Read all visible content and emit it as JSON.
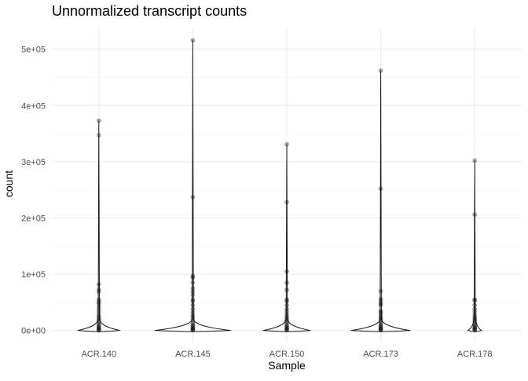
{
  "chart_data": {
    "type": "violin",
    "title": "Unnormalized transcript counts",
    "xlabel": "Sample",
    "ylabel": "count",
    "categories": [
      "ACR.140",
      "ACR.145",
      "ACR.150",
      "ACR.173",
      "ACR.178"
    ],
    "ylim": [
      -20000,
      540000
    ],
    "yticks": [
      0,
      100000,
      200000,
      300000,
      400000,
      500000
    ],
    "ytick_labels": [
      "0e+00",
      "1e+05",
      "2e+05",
      "3e+05",
      "4e+05",
      "5e+05"
    ],
    "grid": true,
    "legend": "none",
    "series": [
      {
        "category": "ACR.140",
        "max": 373000,
        "outliers": [
          373000,
          347000,
          82000,
          73000,
          69000,
          55000,
          51000,
          48000,
          43000,
          38000,
          33000,
          28000,
          24000,
          21000,
          18000,
          15000,
          12000,
          9500,
          7500,
          5500,
          4000,
          2500,
          1200,
          500
        ],
        "width": 0.25
      },
      {
        "category": "ACR.145",
        "max": 516000,
        "outliers": [
          516000,
          237000,
          97000,
          94000,
          85000,
          75000,
          69000,
          63000,
          55000,
          52000,
          45000,
          38000,
          32000,
          27000,
          23000,
          19000,
          15000,
          12000,
          9500,
          7500,
          5500,
          4000,
          2500,
          1200,
          500
        ],
        "width": 0.45
      },
      {
        "category": "ACR.150",
        "max": 331000,
        "outliers": [
          331000,
          228000,
          105000,
          85000,
          72000,
          55000,
          52000,
          45000,
          38000,
          33000,
          28000,
          24000,
          21000,
          18000,
          15000,
          12000,
          9500,
          7500,
          5500,
          4000,
          2500,
          1200,
          500
        ],
        "width": 0.28
      },
      {
        "category": "ACR.173",
        "max": 462000,
        "outliers": [
          462000,
          252000,
          70000,
          56000,
          52000,
          48000,
          45000,
          35000,
          32000,
          28000,
          24000,
          21000,
          18000,
          15000,
          12000,
          9500,
          7500,
          5500,
          4000,
          2500,
          1200,
          500
        ],
        "width": 0.35
      },
      {
        "category": "ACR.178",
        "max": 302000,
        "outliers": [
          302000,
          206000,
          55000,
          53000,
          45000,
          38000,
          33000,
          28000,
          24000,
          21000,
          18000,
          15000,
          12000,
          9500,
          7500,
          5500,
          4000,
          2500,
          1200,
          500
        ],
        "width": 0.08
      }
    ]
  }
}
